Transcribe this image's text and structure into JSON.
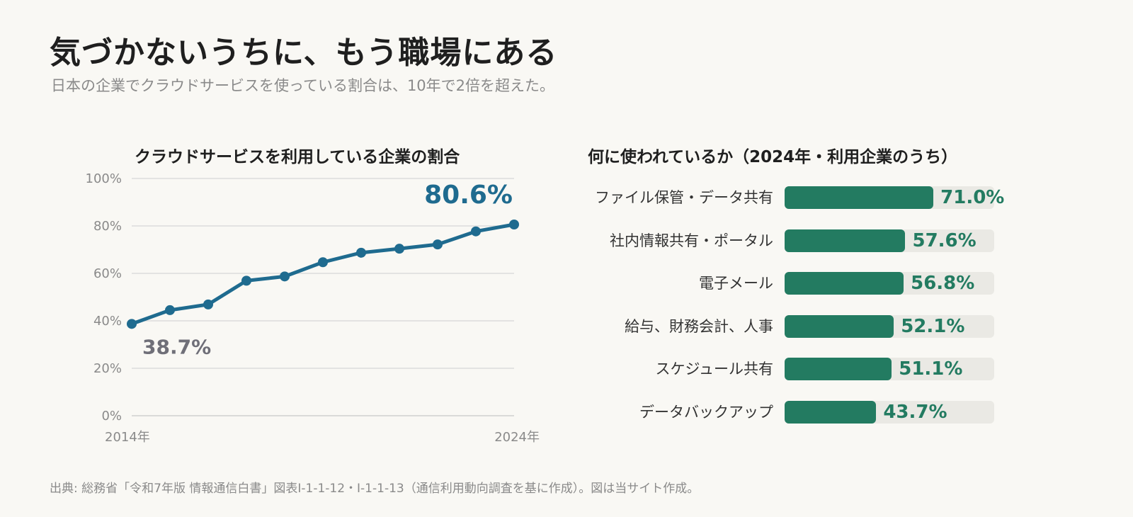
{
  "header": {
    "title": "気づかないうちに、もう職場にある",
    "subtitle": "日本の企業でクラウドサービスを使っている割合は、10年で2倍を超えた。"
  },
  "source": "出典: 総務省「令和7年版 情報通信白書」図表Ⅰ-1-1-12・Ⅰ-1-1-13（通信利用動向調査を基に作成）。図は当サイト作成。",
  "colors": {
    "line": "#1f6b8f",
    "bar": "#237b61",
    "track": "#eae9e4",
    "start_label": "#6f6f78"
  },
  "chart_data": [
    {
      "type": "line",
      "title": "クラウドサービスを利用している企業の割合",
      "x": [
        2014,
        2015,
        2016,
        2017,
        2018,
        2019,
        2020,
        2021,
        2022,
        2023,
        2024
      ],
      "values": [
        38.7,
        44.5,
        46.9,
        56.9,
        58.7,
        64.7,
        68.7,
        70.4,
        72.2,
        77.7,
        80.6
      ],
      "x_tick_labels": [
        "2014年",
        "2024年"
      ],
      "y_ticks": [
        "0%",
        "20%",
        "40%",
        "60%",
        "80%",
        "100%"
      ],
      "ylim": [
        0,
        100
      ],
      "grid": true,
      "start_label": "38.7%",
      "end_label": "80.6%"
    },
    {
      "type": "bar",
      "orientation": "horizontal",
      "title": "何に使われているか（2024年・利用企業のうち）",
      "categories": [
        "ファイル保管・データ共有",
        "社内情報共有・ポータル",
        "電子メール",
        "給与、財務会計、人事",
        "スケジュール共有",
        "データバックアップ"
      ],
      "values": [
        71.0,
        57.6,
        56.8,
        52.1,
        51.1,
        43.7
      ],
      "value_labels": [
        "71.0%",
        "57.6%",
        "56.8%",
        "52.1%",
        "51.1%",
        "43.7%"
      ],
      "xlim": [
        0,
        100
      ]
    }
  ]
}
